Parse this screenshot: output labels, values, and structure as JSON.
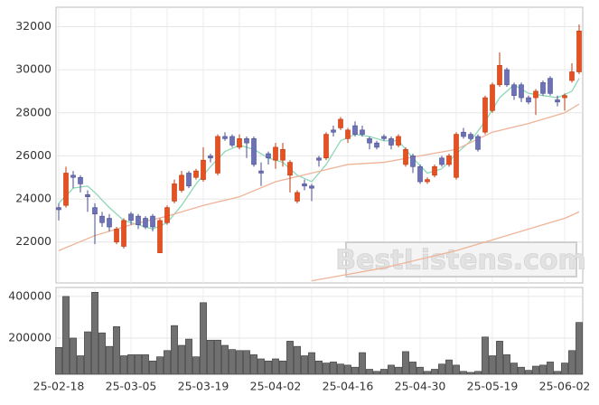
{
  "chart_data": [
    {
      "type": "candlestick",
      "open": [
        23600,
        23700,
        25100,
        25000,
        24200,
        23600,
        23200,
        23100,
        22000,
        21800,
        23300,
        23200,
        23100,
        23200,
        21500,
        22900,
        23900,
        24400,
        25200,
        25000,
        24900,
        26000,
        25200,
        26900,
        26900,
        26400,
        26800,
        26800,
        25300,
        26100,
        25800,
        25800,
        25100,
        23900,
        24700,
        24600,
        25900,
        25900,
        27200,
        27300,
        26800,
        27400,
        27200,
        26800,
        26600,
        26900,
        26800,
        26500,
        25600,
        26000,
        25500,
        24800,
        25100,
        25900,
        25600,
        25000,
        27100,
        27000,
        26900,
        27100,
        28100,
        29300,
        30000,
        29300,
        29300,
        28700,
        28700,
        29400,
        29600,
        28600,
        28700,
        29500,
        29900
      ],
      "high": [
        23800,
        25500,
        25300,
        25100,
        24400,
        23800,
        23400,
        23300,
        22700,
        23100,
        23400,
        23300,
        23200,
        23300,
        23100,
        23700,
        24900,
        25300,
        25300,
        25400,
        26400,
        26100,
        27000,
        27100,
        27000,
        27000,
        26900,
        26900,
        25700,
        26200,
        26600,
        26600,
        25800,
        24400,
        24900,
        24700,
        26000,
        27100,
        27400,
        27800,
        27300,
        27600,
        27400,
        26900,
        26700,
        27000,
        26900,
        27000,
        26400,
        26100,
        25600,
        25000,
        25600,
        26000,
        26100,
        27100,
        27300,
        27100,
        27000,
        28800,
        29400,
        30800,
        30100,
        29400,
        29400,
        28800,
        29100,
        29500,
        29700,
        28800,
        28900,
        30300,
        32100
      ],
      "low": [
        23000,
        23600,
        24500,
        24300,
        23400,
        21900,
        22700,
        22500,
        21900,
        21700,
        22800,
        22600,
        22600,
        22500,
        21500,
        22800,
        23800,
        24300,
        24500,
        24900,
        24800,
        25700,
        25100,
        26700,
        26400,
        26300,
        25900,
        25500,
        24600,
        25600,
        25400,
        25500,
        24300,
        23800,
        24400,
        23900,
        25500,
        25800,
        26900,
        27200,
        26600,
        26900,
        26900,
        26300,
        26300,
        26700,
        26300,
        26400,
        25500,
        25200,
        24700,
        24700,
        25000,
        25500,
        25500,
        24900,
        26800,
        26700,
        26200,
        27000,
        28000,
        29200,
        29200,
        28600,
        28500,
        28400,
        27900,
        28800,
        28800,
        28300,
        28100,
        29400,
        29800
      ],
      "close": [
        23500,
        25200,
        25000,
        24700,
        24100,
        23300,
        22900,
        22700,
        22600,
        23000,
        23000,
        22800,
        22700,
        22700,
        23000,
        23600,
        24700,
        25100,
        24600,
        25300,
        25800,
        25900,
        26900,
        26800,
        26500,
        26800,
        26600,
        25600,
        25200,
        25900,
        26400,
        26300,
        25700,
        24300,
        24600,
        24500,
        25800,
        27000,
        27100,
        27700,
        27200,
        27000,
        27000,
        26600,
        26400,
        26800,
        26500,
        26900,
        26300,
        25500,
        24800,
        24900,
        25500,
        25600,
        26000,
        27000,
        26900,
        26800,
        26300,
        28700,
        29300,
        30200,
        29300,
        28800,
        28700,
        28500,
        29000,
        28900,
        28900,
        28500,
        28800,
        29900,
        31800
      ],
      "up_color": "#e8501f",
      "down_color": "#6d71b6",
      "ylim": [
        20100,
        32900
      ],
      "yticks": [
        22000,
        24000,
        26000,
        28000,
        30000,
        32000
      ],
      "grid": true,
      "lines": [
        {
          "color": "#8ed8b6",
          "x": [
            0,
            2,
            4,
            5,
            7,
            9,
            11,
            13,
            15,
            17,
            19,
            21,
            23,
            25,
            27,
            29,
            31,
            33,
            35,
            37,
            39,
            41,
            43,
            45,
            47,
            49,
            51,
            53,
            55,
            57,
            59,
            61,
            63,
            65,
            67,
            69,
            71,
            72
          ],
          "values": [
            23800,
            24500,
            24600,
            24300,
            23600,
            23000,
            22800,
            22600,
            22900,
            23700,
            24700,
            25500,
            26200,
            26500,
            26300,
            25900,
            25700,
            25100,
            24800,
            25600,
            26700,
            27000,
            26900,
            26700,
            26700,
            25900,
            25200,
            25400,
            26100,
            26700,
            27600,
            28700,
            29300,
            28900,
            28800,
            28700,
            29000,
            29600
          ]
        },
        {
          "color": "#eeb398",
          "x": [
            0,
            5,
            10,
            15,
            20,
            25,
            30,
            35,
            40,
            45,
            50,
            55,
            60,
            65,
            70,
            72
          ],
          "values": [
            21600,
            22300,
            22800,
            23200,
            23700,
            24100,
            24800,
            25200,
            25600,
            25700,
            26000,
            26300,
            27100,
            27500,
            28000,
            28400
          ]
        },
        {
          "color": "#eeb398",
          "x": [
            35,
            40,
            45,
            50,
            55,
            60,
            65,
            70,
            72
          ],
          "values": [
            20200,
            20500,
            20800,
            21200,
            21600,
            22100,
            22600,
            23100,
            23400
          ]
        }
      ],
      "watermark": "BestListens.com"
    },
    {
      "type": "bar",
      "categories": [
        "25-02-18",
        null,
        null,
        null,
        null,
        null,
        null,
        null,
        null,
        null,
        "25-03-05",
        null,
        null,
        null,
        null,
        null,
        null,
        null,
        null,
        null,
        "25-03-19",
        null,
        null,
        null,
        null,
        null,
        null,
        null,
        null,
        null,
        "25-04-02",
        null,
        null,
        null,
        null,
        null,
        null,
        null,
        null,
        null,
        "25-04-16",
        null,
        null,
        null,
        null,
        null,
        null,
        null,
        null,
        null,
        "25-04-30",
        null,
        null,
        null,
        null,
        null,
        null,
        null,
        null,
        null,
        "25-05-19",
        null,
        null,
        null,
        null,
        null,
        null,
        null,
        null,
        null,
        "25-06-02",
        null,
        null
      ],
      "values": [
        155000,
        400000,
        200000,
        115000,
        230000,
        420000,
        225000,
        160000,
        255000,
        115000,
        120000,
        120000,
        120000,
        90000,
        110000,
        140000,
        260000,
        165000,
        195000,
        110000,
        370000,
        190000,
        190000,
        165000,
        145000,
        140000,
        140000,
        120000,
        100000,
        90000,
        100000,
        90000,
        185000,
        160000,
        115000,
        130000,
        90000,
        80000,
        85000,
        75000,
        70000,
        60000,
        130000,
        50000,
        40000,
        50000,
        70000,
        60000,
        135000,
        85000,
        60000,
        40000,
        50000,
        75000,
        95000,
        70000,
        40000,
        35000,
        40000,
        205000,
        115000,
        185000,
        120000,
        80000,
        60000,
        45000,
        65000,
        70000,
        85000,
        40000,
        80000,
        140000,
        275000
      ],
      "color": "#707070",
      "ylim": [
        26000,
        443000
      ],
      "yticks": [
        200000,
        400000
      ],
      "grid": true
    }
  ]
}
